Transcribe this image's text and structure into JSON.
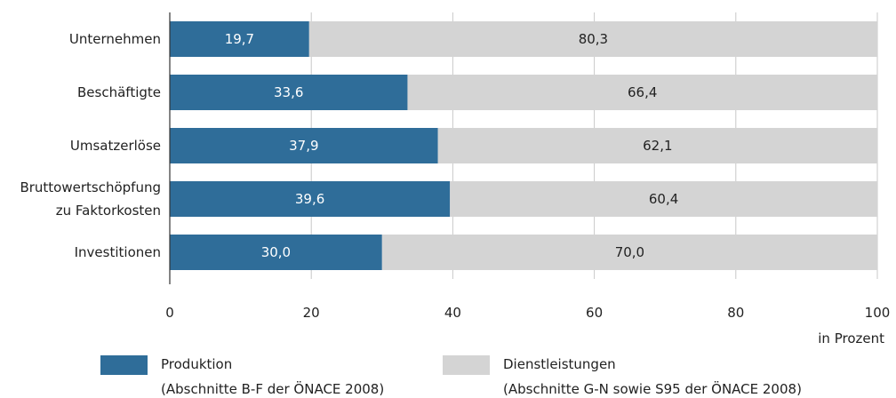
{
  "chart_data": {
    "type": "stacked-barh",
    "categories": [
      "Unternehmen",
      "Beschäftigte",
      "Umsatzerlöse",
      "Bruttowertschöpfung\nzu Faktorkosten",
      "Investitionen"
    ],
    "series": [
      {
        "name": "Produktion\n(Abschnitte B-F der ÖNACE 2008)",
        "color": "#2f6d99",
        "label_color": "#ffffff",
        "values": [
          19.7,
          33.6,
          37.9,
          39.6,
          30.0
        ],
        "value_labels": [
          "19,7",
          "33,6",
          "37,9",
          "39,6",
          "30,0"
        ]
      },
      {
        "name": "Dienstleistungen\n(Abschnitte G-N sowie S95 der ÖNACE 2008)",
        "color": "#d4d4d4",
        "label_color": "#222222",
        "values": [
          80.3,
          66.4,
          62.1,
          60.4,
          70.0
        ],
        "value_labels": [
          "80,3",
          "66,4",
          "62,1",
          "60,4",
          "70,0"
        ]
      }
    ],
    "xlabel": "in Prozent",
    "xlim": [
      0,
      100
    ],
    "xticks": [
      0,
      20,
      40,
      60,
      80,
      100
    ],
    "grid": true
  }
}
